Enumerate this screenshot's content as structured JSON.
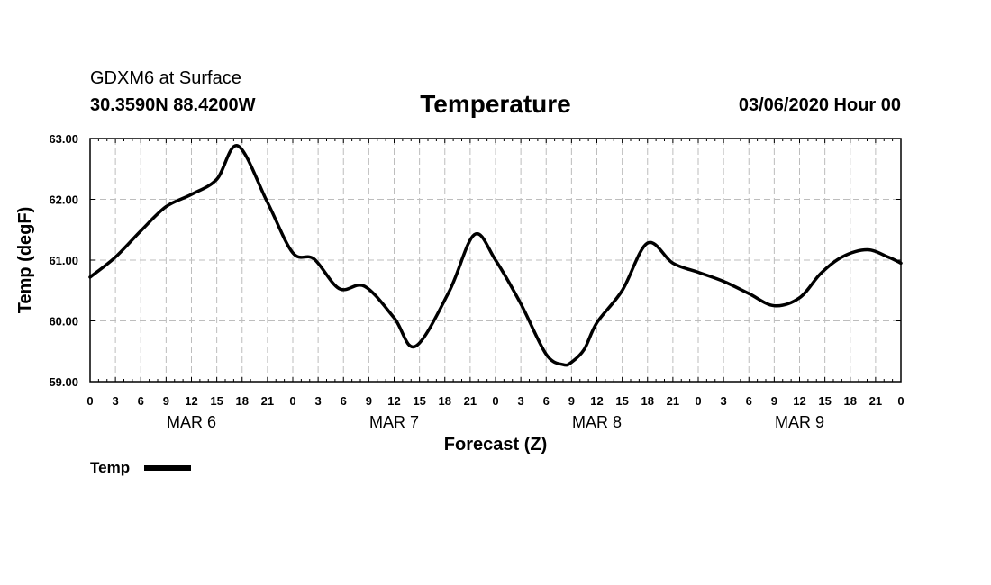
{
  "header": {
    "station": "GDXM6 at Surface",
    "coords": "30.3590N 88.4200W",
    "datetime": "03/06/2020 Hour 00"
  },
  "chart_data": {
    "type": "line",
    "title": "Temperature",
    "xlabel": "Forecast (Z)",
    "ylabel": "Temp (degF)",
    "xlim_hours": [
      0,
      96
    ],
    "ylim": [
      59.0,
      63.0
    ],
    "y_ticks": [
      "59.00",
      "60.00",
      "61.00",
      "62.00",
      "63.00"
    ],
    "x_tick_step_hours": 3,
    "x_tick_labels": [
      "0",
      "3",
      "6",
      "9",
      "12",
      "15",
      "18",
      "21",
      "0",
      "3",
      "6",
      "9",
      "12",
      "15",
      "18",
      "21",
      "0",
      "3",
      "6",
      "9",
      "12",
      "15",
      "18",
      "21",
      "0",
      "3",
      "6",
      "9",
      "12",
      "15",
      "18",
      "21",
      "0"
    ],
    "day_labels": [
      {
        "label": "MAR 6",
        "hour": 12
      },
      {
        "label": "MAR 7",
        "hour": 36
      },
      {
        "label": "MAR 8",
        "hour": 60
      },
      {
        "label": "MAR 9",
        "hour": 84
      }
    ],
    "grid": true,
    "legend": {
      "position": "bottom-left",
      "entries": [
        "Temp"
      ]
    },
    "series": [
      {
        "name": "Temp",
        "hours": [
          0,
          3,
          6,
          9,
          12,
          15,
          17.5,
          21,
          24,
          26.5,
          29.5,
          32.5,
          36,
          38.5,
          42.5,
          45.5,
          48,
          51,
          54,
          56,
          57,
          58.5,
          60,
          63,
          66,
          69,
          72,
          75,
          78,
          81,
          84,
          86.5,
          89,
          92,
          94.5,
          96
        ],
        "values": [
          60.72,
          61.05,
          61.48,
          61.88,
          62.08,
          62.33,
          62.88,
          61.95,
          61.12,
          61.02,
          60.53,
          60.57,
          60.05,
          59.58,
          60.48,
          61.42,
          61.0,
          60.28,
          59.45,
          59.28,
          59.32,
          59.53,
          59.97,
          60.5,
          61.28,
          60.95,
          60.8,
          60.65,
          60.45,
          60.25,
          60.38,
          60.78,
          61.05,
          61.17,
          61.05,
          60.95
        ]
      }
    ]
  }
}
